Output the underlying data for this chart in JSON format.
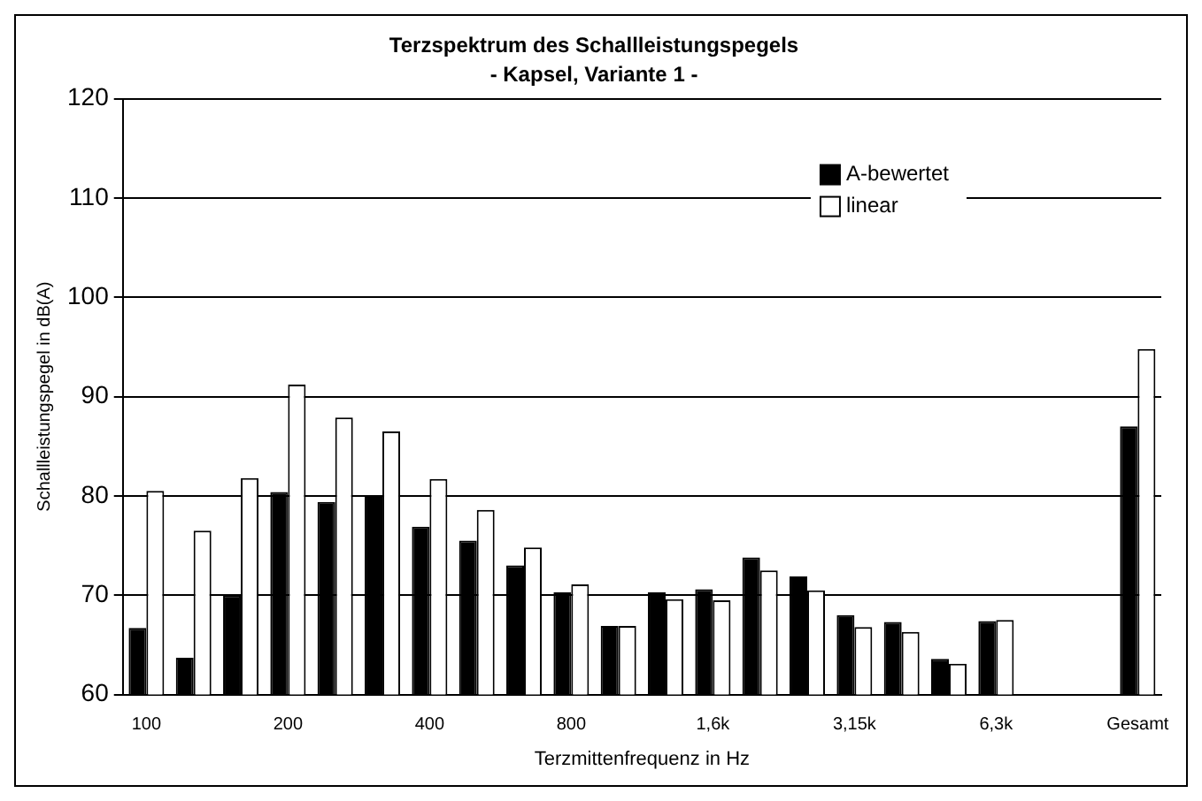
{
  "chart_data": {
    "type": "bar",
    "title": "Terzspektrum des Schallleistungspegels",
    "subtitle": "- Kapsel, Variante 1 -",
    "xlabel": "Terzmittenfrequenz in Hz",
    "ylabel": "Schallleistungspegel in dB(A)",
    "categories": [
      "100",
      null,
      null,
      "200",
      null,
      null,
      "400",
      null,
      null,
      "800",
      null,
      null,
      "1,6k",
      null,
      null,
      "3,15k",
      null,
      null,
      "6,3k",
      null,
      null,
      "Gesamt"
    ],
    "series": [
      {
        "name": "A-bewertet",
        "color": "#000000",
        "values": [
          66.7,
          63.7,
          70,
          80.4,
          79.4,
          80,
          76.9,
          75.5,
          73,
          70.3,
          66.9,
          70.3,
          70.6,
          73.8,
          71.9,
          68,
          67.3,
          63.6,
          67.4,
          null,
          null,
          87
        ]
      },
      {
        "name": "linear",
        "color": "#ffffff",
        "values": [
          80.5,
          76.5,
          81.8,
          91.2,
          87.9,
          86.5,
          81.7,
          78.6,
          74.8,
          71.1,
          66.9,
          69.6,
          69.5,
          72.5,
          70.5,
          66.8,
          66.3,
          63.1,
          67.5,
          null,
          null,
          94.8
        ]
      }
    ],
    "ylim": [
      60,
      120
    ],
    "yticks": [
      60,
      70,
      80,
      90,
      100,
      110,
      120
    ],
    "grid": "y",
    "legend": "top right"
  }
}
